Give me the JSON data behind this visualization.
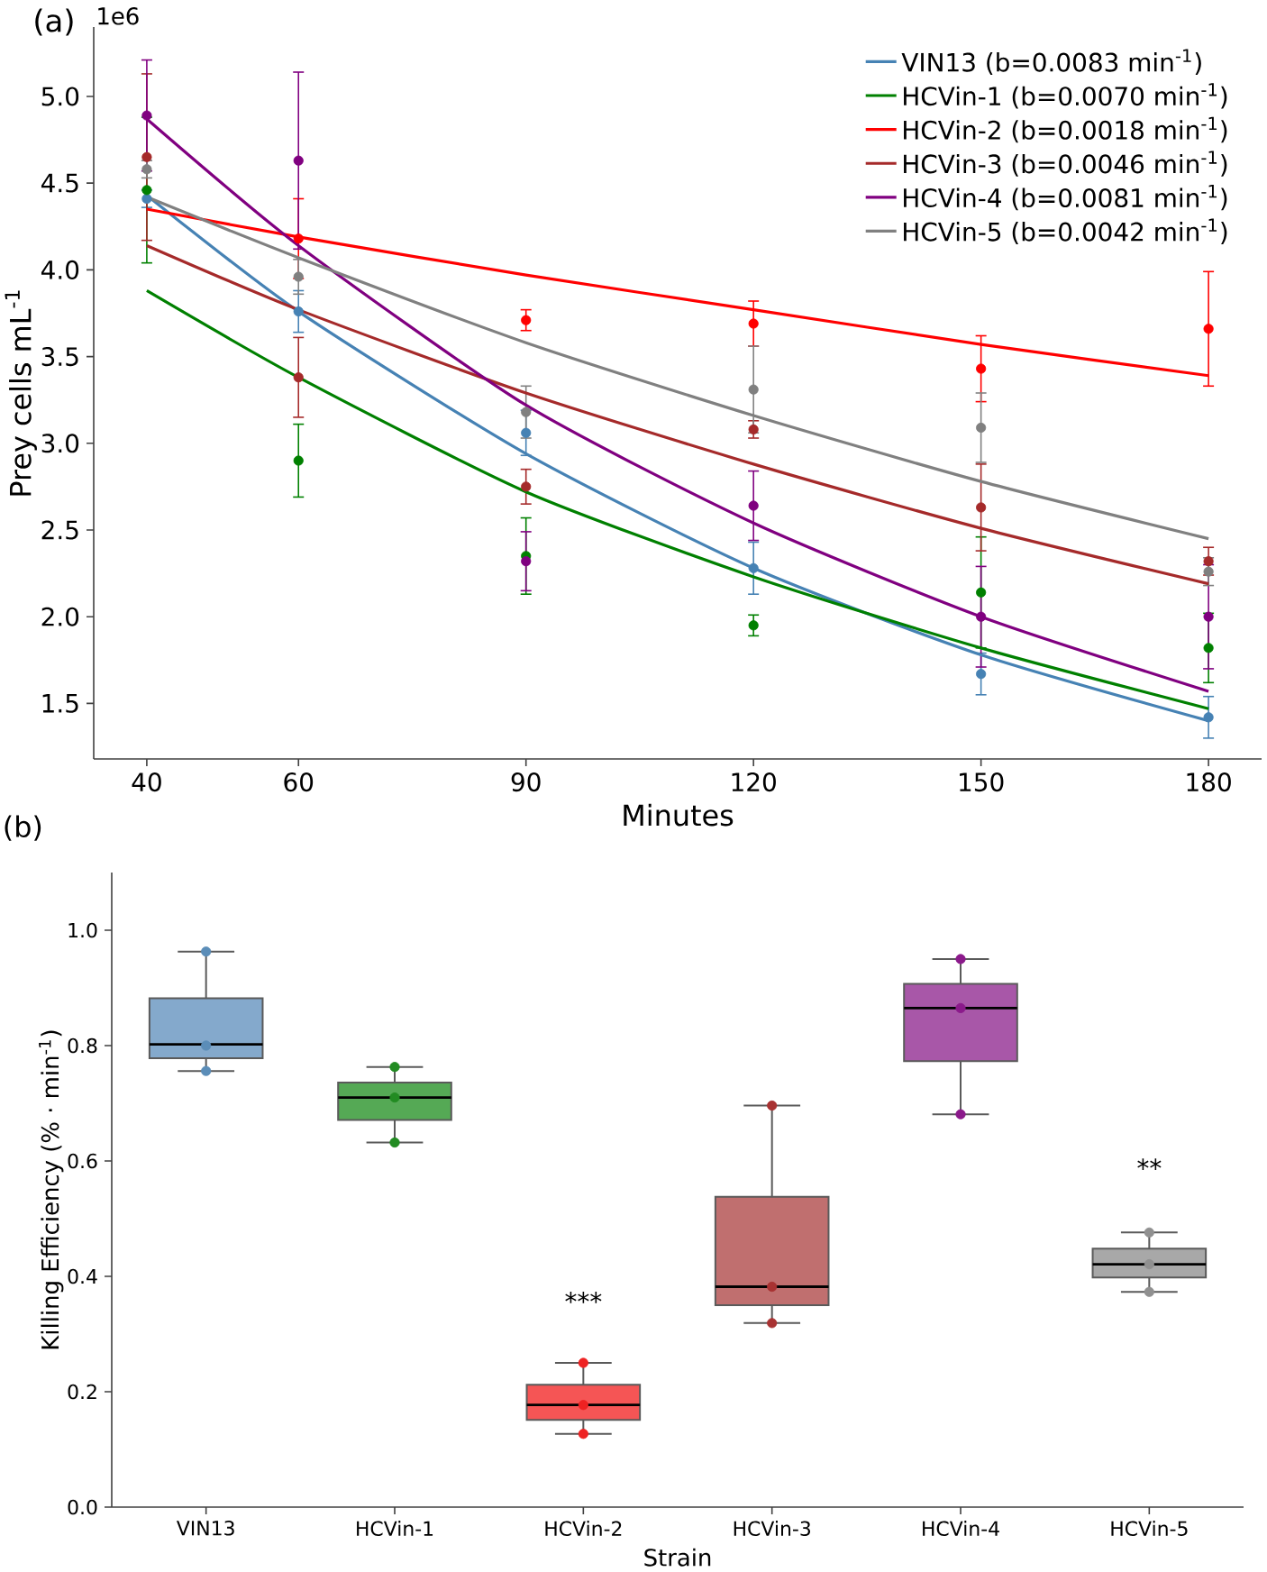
{
  "chart_data": [
    {
      "type": "line",
      "annotations": [
        "(a)",
        "1e6"
      ],
      "xlabel": "Minutes",
      "ylabel": "Prey cells mL$^{-1}$",
      "xlim": [
        33,
        187
      ],
      "ylim": [
        1.18,
        5.4
      ],
      "xticks": [
        40,
        60,
        90,
        120,
        150,
        180
      ],
      "yticks": [
        1.5,
        {
          "value": 2,
          "label": "2.0"
        },
        2.5,
        {
          "value": 3,
          "label": "3.0"
        },
        3.5,
        {
          "value": 4,
          "label": "4.0"
        },
        4.5,
        {
          "value": 5,
          "label": "5.0"
        }
      ],
      "legend": "top right",
      "series": [
        {
          "type": "scatter",
          "color": "#4682b4",
          "x": [
            40,
            60,
            90,
            120,
            150,
            180
          ],
          "values": [
            4.41,
            3.76,
            3.06,
            2.28,
            1.67,
            1.42
          ],
          "errors": [
            0.05,
            0.12,
            0.13,
            0.15,
            0.12,
            0.12
          ]
        },
        {
          "type": "scatter",
          "color": "#008000",
          "x": [
            40,
            60,
            90,
            120,
            150,
            180
          ],
          "values": [
            4.46,
            2.9,
            2.35,
            1.95,
            2.14,
            1.82
          ],
          "errors": [
            0.42,
            0.21,
            0.22,
            0.06,
            0.32,
            0.2
          ]
        },
        {
          "type": "scatter",
          "color": "#ff0000",
          "x": [
            60,
            90,
            120,
            150,
            180
          ],
          "values": [
            4.18,
            3.71,
            3.69,
            3.43,
            3.66
          ],
          "errors": [
            0.23,
            0.06,
            0.13,
            0.19,
            0.33
          ]
        },
        {
          "type": "scatter",
          "color": "#a52a2a",
          "x": [
            40,
            60,
            90,
            120,
            150,
            180
          ],
          "values": [
            4.65,
            3.38,
            2.75,
            3.08,
            2.63,
            2.32
          ],
          "errors": [
            0.48,
            0.23,
            0.1,
            0.05,
            0.25,
            0.08
          ]
        },
        {
          "type": "scatter",
          "color": "#800080",
          "x": [
            40,
            60,
            90,
            120,
            150,
            180
          ],
          "values": [
            4.89,
            4.63,
            2.32,
            2.64,
            2.0,
            2.0
          ],
          "errors": [
            0.32,
            0.51,
            0.17,
            0.2,
            0.29,
            0.3
          ]
        },
        {
          "type": "scatter",
          "color": "#808080",
          "x": [
            40,
            60,
            90,
            120,
            150,
            180
          ],
          "values": [
            4.58,
            3.96,
            3.18,
            3.31,
            3.09,
            2.26
          ],
          "errors": [
            0.05,
            0.1,
            0.15,
            0.25,
            0.2,
            0.08
          ]
        },
        {
          "type": "line",
          "name": "VIN13 (b=0.0083 min$^{-1}$)",
          "color": "#4682b4",
          "x": [
            40,
            60,
            90,
            120,
            150,
            180
          ],
          "values": [
            4.43,
            3.76,
            2.94,
            2.28,
            1.78,
            1.4
          ]
        },
        {
          "type": "line",
          "name": "HCVin-1 (b=0.0070 min$^{-1}$)",
          "color": "#008000",
          "x": [
            40,
            60,
            90,
            120,
            150,
            180
          ],
          "values": [
            3.88,
            3.38,
            2.72,
            2.23,
            1.82,
            1.47
          ]
        },
        {
          "type": "line",
          "name": "HCVin-2 (b=0.0018 min$^{-1}$)",
          "color": "#ff0000",
          "x": [
            40,
            60,
            90,
            120,
            150,
            180
          ],
          "values": [
            4.35,
            4.19,
            3.97,
            3.77,
            3.57,
            3.39
          ]
        },
        {
          "type": "line",
          "name": "HCVin-3 (b=0.0046 min$^{-1}$)",
          "color": "#a52a2a",
          "x": [
            40,
            60,
            90,
            120,
            150,
            180
          ],
          "values": [
            4.14,
            3.77,
            3.29,
            2.88,
            2.51,
            2.19
          ]
        },
        {
          "type": "line",
          "name": "HCVin-4 (b=0.0081 min$^{-1}$)",
          "color": "#800080",
          "x": [
            40,
            60,
            90,
            120,
            150,
            180
          ],
          "values": [
            4.87,
            4.14,
            3.22,
            2.54,
            2.0,
            1.57
          ]
        },
        {
          "type": "line",
          "name": "HCVin-5 (b=0.0042 min$^{-1}$)",
          "color": "#808080",
          "x": [
            40,
            60,
            90,
            120,
            150,
            180
          ],
          "values": [
            4.42,
            4.07,
            3.58,
            3.16,
            2.78,
            2.45
          ]
        }
      ]
    },
    {
      "type": "box",
      "annotations": [
        "(b)",
        "***",
        "**"
      ],
      "xlabel": "Strain",
      "ylabel": "Killing Efficiency (% · min$^{-1}$)",
      "categories": [
        "VIN13",
        "HCVin-1",
        "HCVin-2",
        "HCVin-3",
        "HCVin-4",
        "HCVin-5"
      ],
      "ylim": [
        0,
        1.1
      ],
      "yticks": [
        {
          "value": 0,
          "label": "0.0"
        },
        0.2,
        0.4,
        0.6,
        0.8,
        {
          "value": 1,
          "label": "1.0"
        }
      ],
      "colors": [
        "#84a9cc",
        "#55a955",
        "#f55555",
        "#c06f6f",
        "#a857a8",
        "#a8a8a8"
      ],
      "boxes": [
        {
          "low": 0.756,
          "q1": 0.778,
          "median": 0.802,
          "q3": 0.882,
          "high": 0.963
        },
        {
          "low": 0.632,
          "q1": 0.671,
          "median": 0.71,
          "q3": 0.736,
          "high": 0.763
        },
        {
          "low": 0.127,
          "q1": 0.151,
          "median": 0.177,
          "q3": 0.212,
          "high": 0.25
        },
        {
          "low": 0.319,
          "q1": 0.35,
          "median": 0.382,
          "q3": 0.538,
          "high": 0.696
        },
        {
          "low": 0.681,
          "q1": 0.773,
          "median": 0.865,
          "q3": 0.907,
          "high": 0.95
        },
        {
          "low": 0.373,
          "q1": 0.398,
          "median": 0.421,
          "q3": 0.448,
          "high": 0.476
        }
      ],
      "series": [
        {
          "type": "scatter",
          "color": "#5b8db8",
          "x": [
            "VIN13",
            "VIN13",
            "VIN13"
          ],
          "values": [
            0.963,
            0.8,
            0.756
          ]
        },
        {
          "type": "scatter",
          "color": "#228b22",
          "x": [
            "HCVin-1",
            "HCVin-1",
            "HCVin-1"
          ],
          "values": [
            0.763,
            0.71,
            0.632
          ]
        },
        {
          "type": "scatter",
          "color": "#ee2222",
          "x": [
            "HCVin-2",
            "HCVin-2",
            "HCVin-2"
          ],
          "values": [
            0.25,
            0.177,
            0.127
          ]
        },
        {
          "type": "scatter",
          "color": "#a83232",
          "x": [
            "HCVin-3",
            "HCVin-3",
            "HCVin-3"
          ],
          "values": [
            0.696,
            0.382,
            0.319
          ]
        },
        {
          "type": "scatter",
          "color": "#8b1a8b",
          "x": [
            "HCVin-4",
            "HCVin-4",
            "HCVin-4"
          ],
          "values": [
            0.95,
            0.865,
            0.681
          ]
        },
        {
          "type": "scatter",
          "color": "#909090",
          "x": [
            "HCVin-5",
            "HCVin-5",
            "HCVin-5"
          ],
          "values": [
            0.476,
            0.421,
            0.373
          ]
        }
      ]
    }
  ]
}
